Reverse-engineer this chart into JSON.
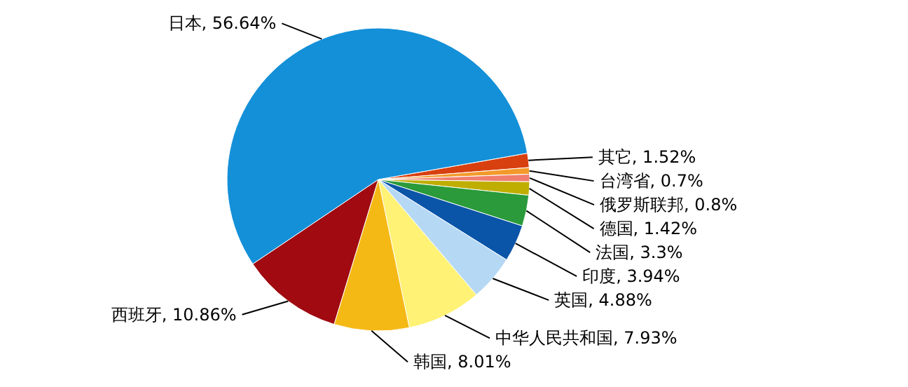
{
  "chart_data": {
    "type": "pie",
    "value_labels": [
      "1.52%",
      "0.7%",
      "0.8%",
      "1.42%",
      "3.3%",
      "3.94%",
      "4.88%",
      "7.93%",
      "8.01%",
      "10.86%",
      "56.64%"
    ],
    "categories": [
      "其它",
      "台湾省",
      "俄罗斯联邦",
      "德国",
      "法国",
      "印度",
      "英国",
      "中华人民共和国",
      "韩国",
      "西班牙",
      "日本"
    ],
    "values": [
      1.52,
      0.7,
      0.8,
      1.42,
      3.3,
      3.94,
      4.88,
      7.93,
      8.01,
      10.86,
      56.64
    ],
    "colors": [
      "#d8400f",
      "#f39a2b",
      "#f07e6e",
      "#bfae00",
      "#2a9a3a",
      "#0a55a8",
      "#b5d8f5",
      "#fff275",
      "#f5b915",
      "#a00a10",
      "#1490d8"
    ]
  }
}
